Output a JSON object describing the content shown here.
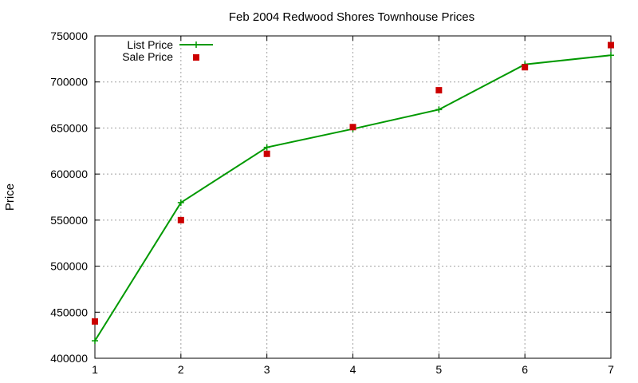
{
  "chart_data": {
    "type": "line",
    "title": "Feb 2004 Redwood Shores Townhouse Prices",
    "xlabel": "",
    "ylabel": "Price",
    "xlim": [
      1,
      7
    ],
    "ylim": [
      400000,
      750000
    ],
    "x_ticks": [
      "1",
      "2",
      "3",
      "4",
      "5",
      "6",
      "7"
    ],
    "y_ticks": [
      "400000",
      "450000",
      "500000",
      "550000",
      "600000",
      "650000",
      "700000",
      "750000"
    ],
    "grid": true,
    "legend_position": "top-left",
    "x": [
      1,
      2,
      3,
      4,
      5,
      6,
      7
    ],
    "series": [
      {
        "name": "List Price",
        "style": "line with plus markers",
        "color": "#009900",
        "values": [
          419000,
          569000,
          629000,
          649000,
          670000,
          719000,
          729000
        ]
      },
      {
        "name": "Sale Price",
        "style": "square points",
        "color": "#cc0000",
        "values": [
          440000,
          550000,
          622000,
          651000,
          691000,
          716000,
          740000
        ]
      }
    ]
  }
}
